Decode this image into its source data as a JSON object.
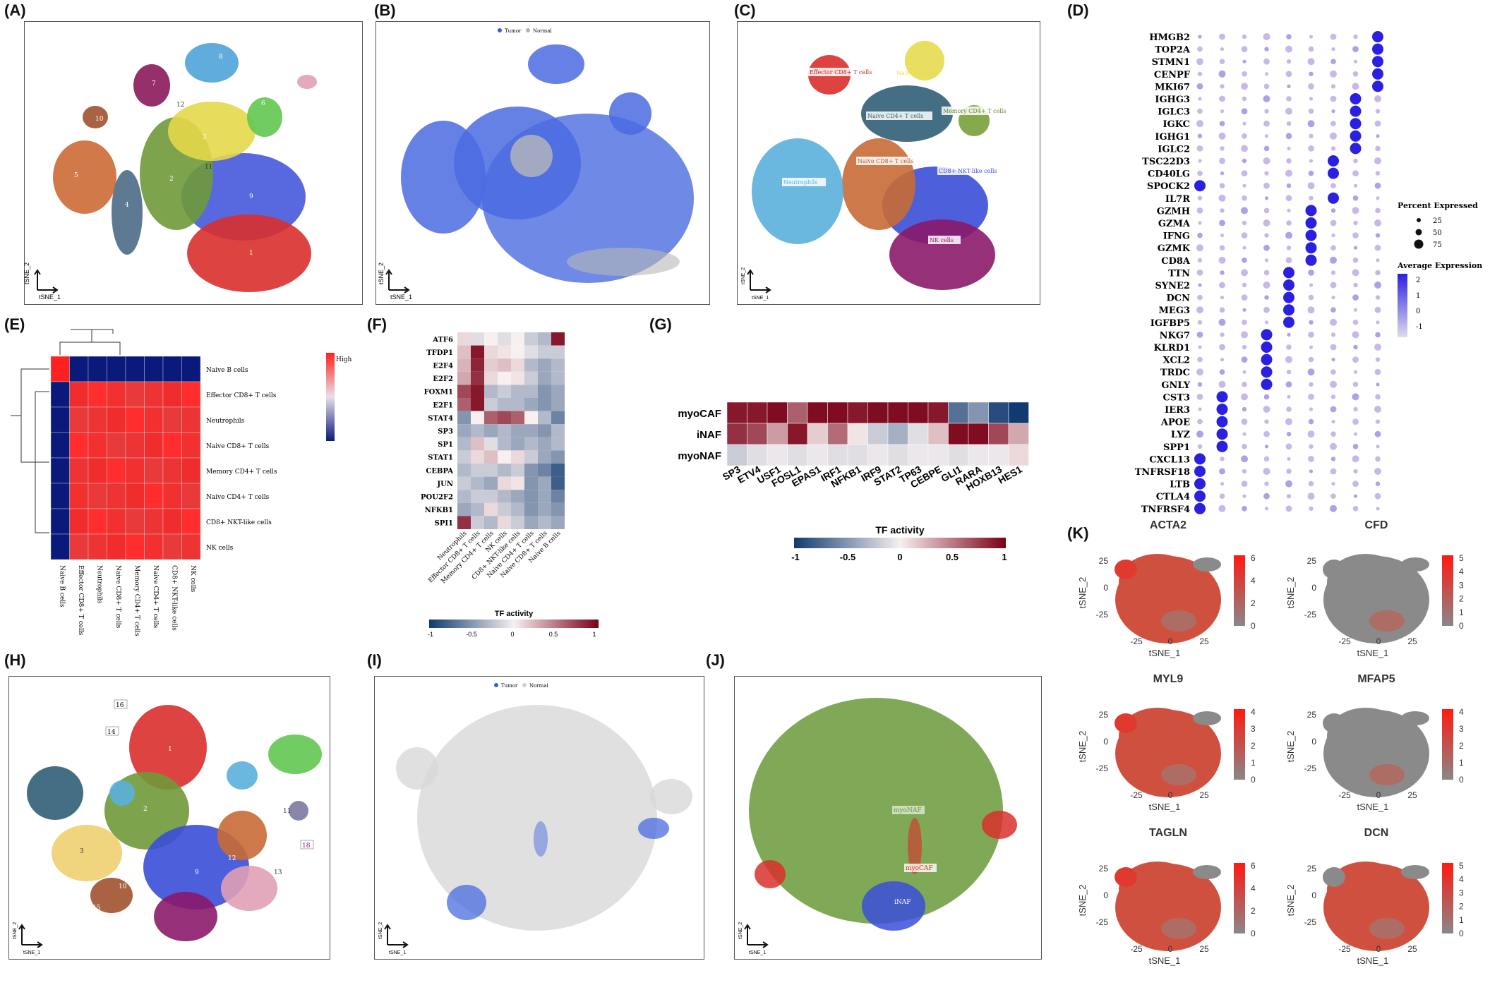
{
  "panel_labels": {
    "A": "(A)",
    "B": "(B)",
    "C": "(C)",
    "D": "(D)",
    "E": "(E)",
    "F": "(F)",
    "G": "(G)",
    "H": "(H)",
    "I": "(I)",
    "J": "(J)",
    "K": "(K)"
  },
  "tsne": {
    "x": "tSNE_1",
    "y": "tSNE_2"
  },
  "panel_A": {
    "cluster_labels": [
      "10",
      "7",
      "5",
      "2",
      "1",
      "3",
      "4",
      "6",
      "8",
      "9",
      "11",
      "12"
    ]
  },
  "panel_B": {
    "legend": [
      "Tumor",
      "Normal"
    ],
    "colors": [
      "#3a5fcd",
      "#b0b0b0"
    ]
  },
  "panel_C": {
    "cell_labels": [
      "Effector CD8+ T cells",
      "Naive B cells",
      "Naive CD4+ T cells",
      "Memory CD4+ T cells",
      "Neutrophils",
      "Naive CD8+ T cells",
      "CD8+ NKT-like cells",
      "NK cells"
    ]
  },
  "panel_D": {
    "genes": [
      "HMGB2",
      "TOP2A",
      "STMN1",
      "CENPF",
      "MKI67",
      "IGHG3",
      "IGLC3",
      "IGKC",
      "IGHG1",
      "IGLC2",
      "TSC22D3",
      "CD40LG",
      "SPOCK2",
      "IL7R",
      "GZMH",
      "GZMA",
      "IFNG",
      "GZMK",
      "CD8A",
      "TTN",
      "SYNE2",
      "DCN",
      "MEG3",
      "IGFBP5",
      "NKG7",
      "KLRD1",
      "XCL2",
      "TRDC",
      "GNLY",
      "CST3",
      "IER3",
      "APOE",
      "LYZ",
      "SPP1",
      "CXCL13",
      "TNFRSF18",
      "LTB",
      "CTLA4",
      "TNFRSF4"
    ],
    "legend_size_title": "Percent Expressed",
    "legend_sizes": [
      "25",
      "50",
      "75"
    ],
    "legend_color_title": "Average Expression",
    "legend_color_ticks": [
      "2",
      "1",
      "0",
      "-1"
    ]
  },
  "panel_E": {
    "legend_high": "High",
    "row_labels": [
      "Naive B cells",
      "Effector CD8+ T cells",
      "Neutrophils",
      "Naive CD8+ T cells",
      "Memory CD4+ T cells",
      "Naive CD4+ T cells",
      "CD8+ NKT-like cells",
      "NK cells"
    ],
    "col_labels": [
      "Naive B cells",
      "Effector CD8+ T cells",
      "Neutrophils",
      "Naive CD8+ T cells",
      "Memory CD4+ T cells",
      "Naive CD4+ T cells",
      "CD8+ NKT-like cells",
      "NK cells"
    ]
  },
  "panel_F": {
    "row_labels": [
      "ATF6",
      "TFDP1",
      "E2F4",
      "E2F2",
      "FOXM1",
      "E2F1",
      "STAT4",
      "SP3",
      "SP1",
      "STAT1",
      "CEBPA",
      "JUN",
      "POU2F2",
      "NFKB1",
      "SPI1"
    ],
    "col_labels": [
      "Neutrophils",
      "Effector CD8+ T cells",
      "Memory CD4+ T cells",
      "NK cells",
      "CD8+ NKT-like cells",
      "Naive CD4+ T cells",
      "Naive CD8+ T cells",
      "Naive B cells"
    ],
    "cbar_title": "TF activity",
    "cbar_ticks": [
      "-1",
      "-0.5",
      "0",
      "0.5",
      "1"
    ]
  },
  "panel_G": {
    "row_labels": [
      "myoCAF",
      "iNAF",
      "myoNAF"
    ],
    "col_labels": [
      "SP3",
      "ETV4",
      "USF1",
      "FOSL1",
      "EPAS1",
      "IRF1",
      "NFKB1",
      "IRF9",
      "STAT2",
      "TP63",
      "CEBPE",
      "GLI1",
      "RARA",
      "HOXB13",
      "HES1"
    ],
    "cbar_title": "TF activity",
    "cbar_ticks": [
      "-1",
      "-0.5",
      "0",
      "0.5",
      "1"
    ]
  },
  "panel_H": {
    "cluster_labels": [
      "16",
      "14",
      "11",
      "18",
      "13",
      "10",
      "15",
      "9",
      "12",
      "1",
      "2",
      "3"
    ]
  },
  "panel_I": {
    "legend": [
      "Tumor",
      "Normal"
    ]
  },
  "panel_J": {
    "labels": [
      "myoNAF",
      "myoCAF",
      "iNAF"
    ]
  },
  "panel_K": {
    "plots": [
      {
        "title": "ACTA2",
        "ticks": [
          "6",
          "4",
          "2",
          "0"
        ]
      },
      {
        "title": "CFD",
        "ticks": [
          "5",
          "4",
          "3",
          "2",
          "1",
          "0"
        ]
      },
      {
        "title": "MYL9",
        "ticks": [
          "4",
          "3",
          "2",
          "1",
          "0"
        ]
      },
      {
        "title": "MFAP5",
        "ticks": [
          "4",
          "3",
          "2",
          "1",
          "0"
        ]
      },
      {
        "title": "TAGLN",
        "ticks": [
          "6",
          "4",
          "2",
          "0"
        ]
      },
      {
        "title": "DCN",
        "ticks": [
          "5",
          "4",
          "3",
          "2",
          "1",
          "0"
        ]
      }
    ],
    "xticks": [
      "-25",
      "0",
      "25"
    ],
    "yticks": [
      "25",
      "0",
      "-25"
    ]
  },
  "colors": {
    "heat_low": "#0a1a7a",
    "heat_high": "#ff2020",
    "tf_low": "#103a70",
    "tf_high": "#7a0016"
  }
}
